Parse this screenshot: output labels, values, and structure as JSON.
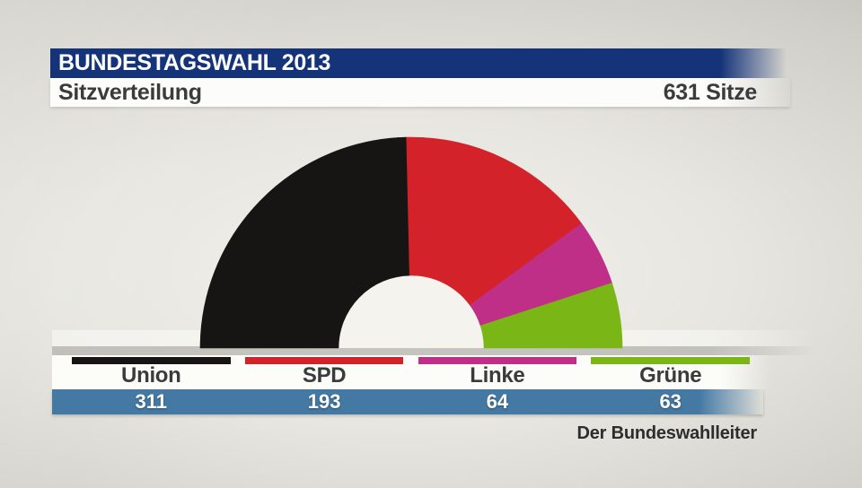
{
  "header": {
    "title": "BUNDESTAGSWAHL 2013",
    "subtitle": "Sitzverteilung",
    "total_seats_label": "631 Sitze"
  },
  "source": "Der Bundeswahlleiter",
  "colors": {
    "header_bar": "#143379",
    "values_bar": "#4479a4",
    "donut_hole": "#f4f3ee",
    "background_center": "#f2f1eb",
    "background_edge": "#a5a59f",
    "label_text": "#3b3b3b"
  },
  "chart_data": {
    "type": "pie",
    "variant": "half_donut",
    "title": "Sitzverteilung",
    "total": 631,
    "total_label": "631 Sitze",
    "categories": [
      "Union",
      "SPD",
      "Linke",
      "Grüne"
    ],
    "values": [
      311,
      193,
      64,
      63
    ],
    "colors": [
      "#171414",
      "#d4222b",
      "#c02f87",
      "#7ab616"
    ],
    "legend_position": "bottom",
    "start_angle_deg": 180,
    "end_angle_deg": 0
  }
}
